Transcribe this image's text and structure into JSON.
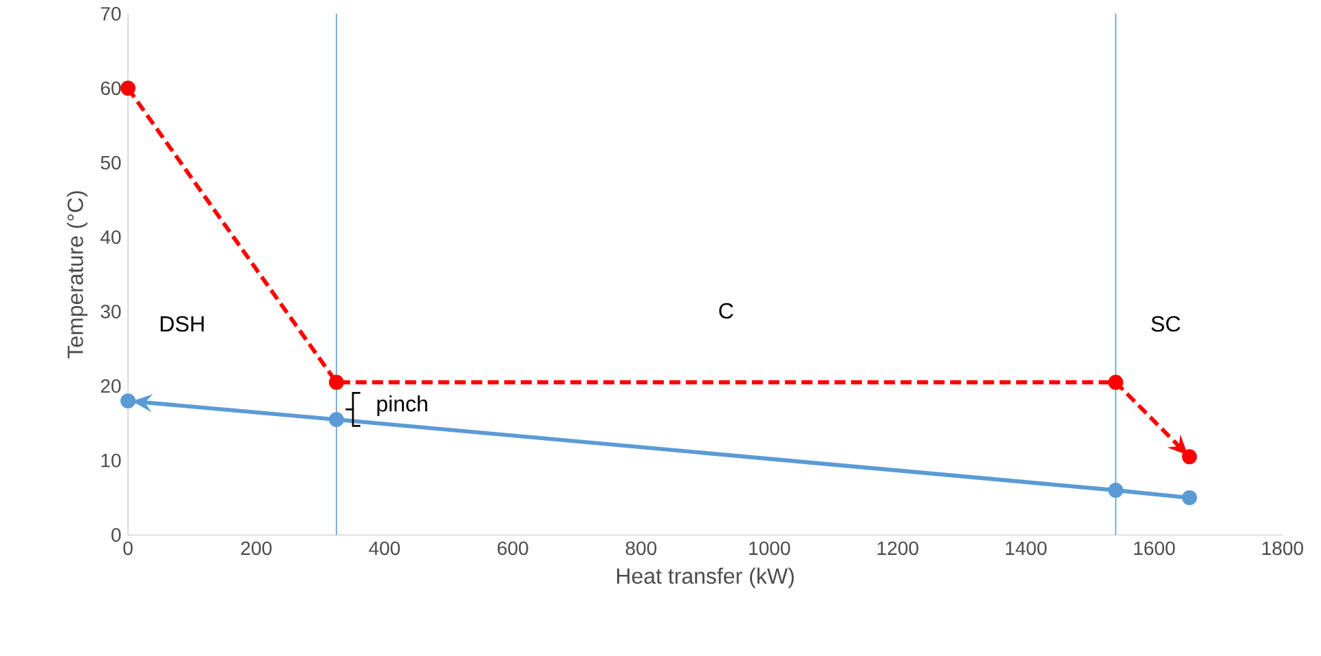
{
  "chart_data": {
    "type": "line",
    "xlabel": "Heat transfer (kW)",
    "ylabel": "Temperature (°C)",
    "xlim": [
      0,
      1800
    ],
    "xticks": [
      0,
      200,
      400,
      600,
      800,
      1000,
      1200,
      1400,
      1600,
      1800
    ],
    "ylim": [
      0,
      70
    ],
    "yticks": [
      0,
      10,
      20,
      30,
      40,
      50,
      60,
      70
    ],
    "grid": false,
    "marker": "circle",
    "series": [
      {
        "color": "#ff0000",
        "line_style": "dashed",
        "x": [
          0,
          325,
          1540,
          1655
        ],
        "values": [
          60,
          20.5,
          20.5,
          10.5
        ]
      },
      {
        "color": "#5b9bd5",
        "line_style": "solid",
        "x": [
          1655,
          1540,
          325,
          0
        ],
        "values": [
          5,
          6,
          15.5,
          18
        ]
      }
    ],
    "ref_lines": [
      {
        "axis": "x",
        "value": 325,
        "color": "#5b9bd5"
      },
      {
        "axis": "x",
        "value": 1540,
        "color": "#5b9bd5"
      }
    ],
    "annotations": [
      "DSH",
      "C",
      "SC",
      "pinch"
    ]
  }
}
